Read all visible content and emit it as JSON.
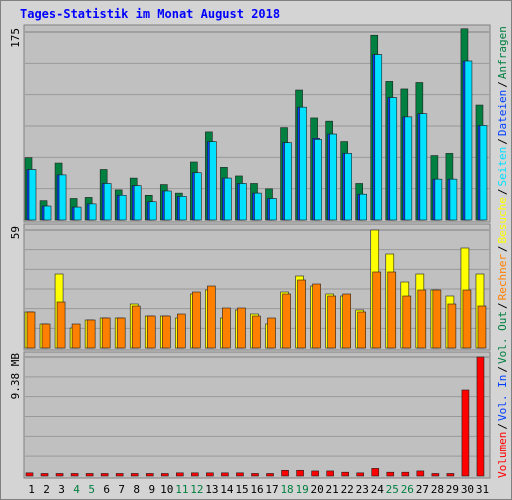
{
  "chart_data": [
    {
      "type": "bar",
      "title": "Tages-Statistik im Monat August 2018",
      "categories": [
        "1",
        "2",
        "3",
        "4",
        "5",
        "6",
        "7",
        "8",
        "9",
        "10",
        "11",
        "12",
        "13",
        "14",
        "15",
        "16",
        "17",
        "18",
        "19",
        "20",
        "21",
        "22",
        "23",
        "24",
        "25",
        "26",
        "27",
        "28",
        "29",
        "30",
        "31"
      ],
      "weekends": [
        "4",
        "5",
        "11",
        "12",
        "18",
        "19",
        "25",
        "26"
      ],
      "weekend_color": "#008040",
      "legend_separator": "/",
      "ylim": [
        0,
        175
      ],
      "yticks": [
        175
      ],
      "series": [
        {
          "name": "Anfragen",
          "color": "#008040",
          "values": [
            58,
            18,
            53,
            20,
            21,
            47,
            28,
            39,
            23,
            33,
            25,
            54,
            82,
            49,
            41,
            34,
            29,
            86,
            121,
            95,
            92,
            73,
            34,
            172,
            129,
            122,
            128,
            60,
            62,
            178,
            107
          ]
        },
        {
          "name": "Dateien",
          "color": "#0040ff",
          "values": [
            47,
            13,
            42,
            12,
            15,
            34,
            23,
            32,
            17,
            27,
            22,
            44,
            73,
            39,
            34,
            25,
            20,
            72,
            105,
            76,
            80,
            62,
            24,
            154,
            114,
            96,
            99,
            38,
            38,
            148,
            88
          ]
        },
        {
          "name": "Seiten",
          "color": "#00e0ff",
          "values": [
            47,
            13,
            42,
            12,
            15,
            34,
            23,
            32,
            17,
            27,
            22,
            44,
            73,
            39,
            34,
            25,
            20,
            72,
            105,
            75,
            80,
            62,
            24,
            154,
            114,
            96,
            99,
            38,
            38,
            148,
            88
          ]
        }
      ]
    },
    {
      "type": "bar",
      "ylim": [
        0,
        59
      ],
      "yticks": [
        59
      ],
      "series": [
        {
          "name": "Besuche",
          "color": "#ffff00",
          "values": [
            18,
            12,
            37,
            10,
            14,
            15,
            15,
            22,
            16,
            16,
            15,
            27,
            29,
            15,
            19,
            17,
            12,
            28,
            36,
            31,
            27,
            26,
            19,
            59,
            47,
            33,
            37,
            29,
            26,
            50,
            37
          ]
        },
        {
          "name": "Rechner",
          "color": "#ff8000",
          "values": [
            18,
            12,
            23,
            12,
            14,
            15,
            15,
            21,
            16,
            16,
            17,
            28,
            31,
            20,
            20,
            16,
            15,
            27,
            34,
            32,
            26,
            27,
            18,
            38,
            38,
            26,
            29,
            29,
            22,
            29,
            21
          ]
        }
      ]
    },
    {
      "type": "bar",
      "ylim": [
        0,
        9.38
      ],
      "yticks": [
        {
          "value": 9.38,
          "label": "9.38 MB"
        }
      ],
      "series": [
        {
          "name": "Vol. Out",
          "color": "#008040",
          "values": [
            0,
            0,
            0,
            0,
            0,
            0,
            0,
            0,
            0,
            0,
            0,
            0,
            0,
            0,
            0,
            0,
            0,
            0,
            0,
            0,
            0,
            0,
            0,
            0,
            0,
            0,
            0,
            0,
            0,
            0,
            0
          ]
        },
        {
          "name": "Vol. In",
          "color": "#0040ff",
          "values": [
            0,
            0,
            0,
            0,
            0,
            0,
            0,
            0,
            0,
            0,
            0,
            0,
            0,
            0,
            0,
            0,
            0,
            0,
            0,
            0,
            0,
            0,
            0,
            0,
            0,
            0,
            0,
            0,
            0,
            0,
            0
          ]
        },
        {
          "name": "Volumen",
          "color": "#ff0000",
          "values": [
            0.25,
            0.2,
            0.2,
            0.2,
            0.2,
            0.2,
            0.2,
            0.2,
            0.2,
            0.2,
            0.25,
            0.25,
            0.25,
            0.25,
            0.25,
            0.2,
            0.2,
            0.45,
            0.45,
            0.4,
            0.4,
            0.3,
            0.25,
            0.6,
            0.3,
            0.3,
            0.4,
            0.2,
            0.2,
            6.78,
            9.38
          ]
        }
      ]
    }
  ]
}
